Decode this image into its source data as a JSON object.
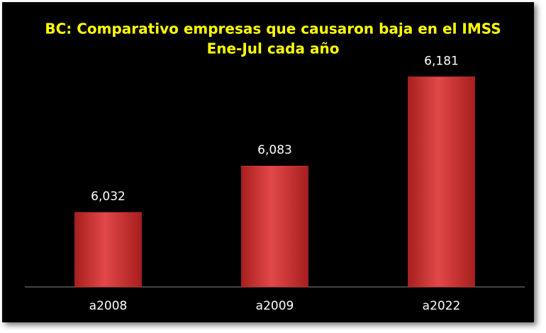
{
  "chart_data": {
    "type": "bar",
    "title": "BC: Comparativo empresas que causaron baja en el IMSS",
    "subtitle": "Ene-Jul cada año",
    "categories": [
      "a2008",
      "a2009",
      "a2022"
    ],
    "values": [
      6032,
      6083,
      6181
    ],
    "value_labels": [
      "6,032",
      "6,083",
      "6,181"
    ],
    "color": "#d93a3a",
    "ylim": [
      5950,
      6200
    ]
  }
}
